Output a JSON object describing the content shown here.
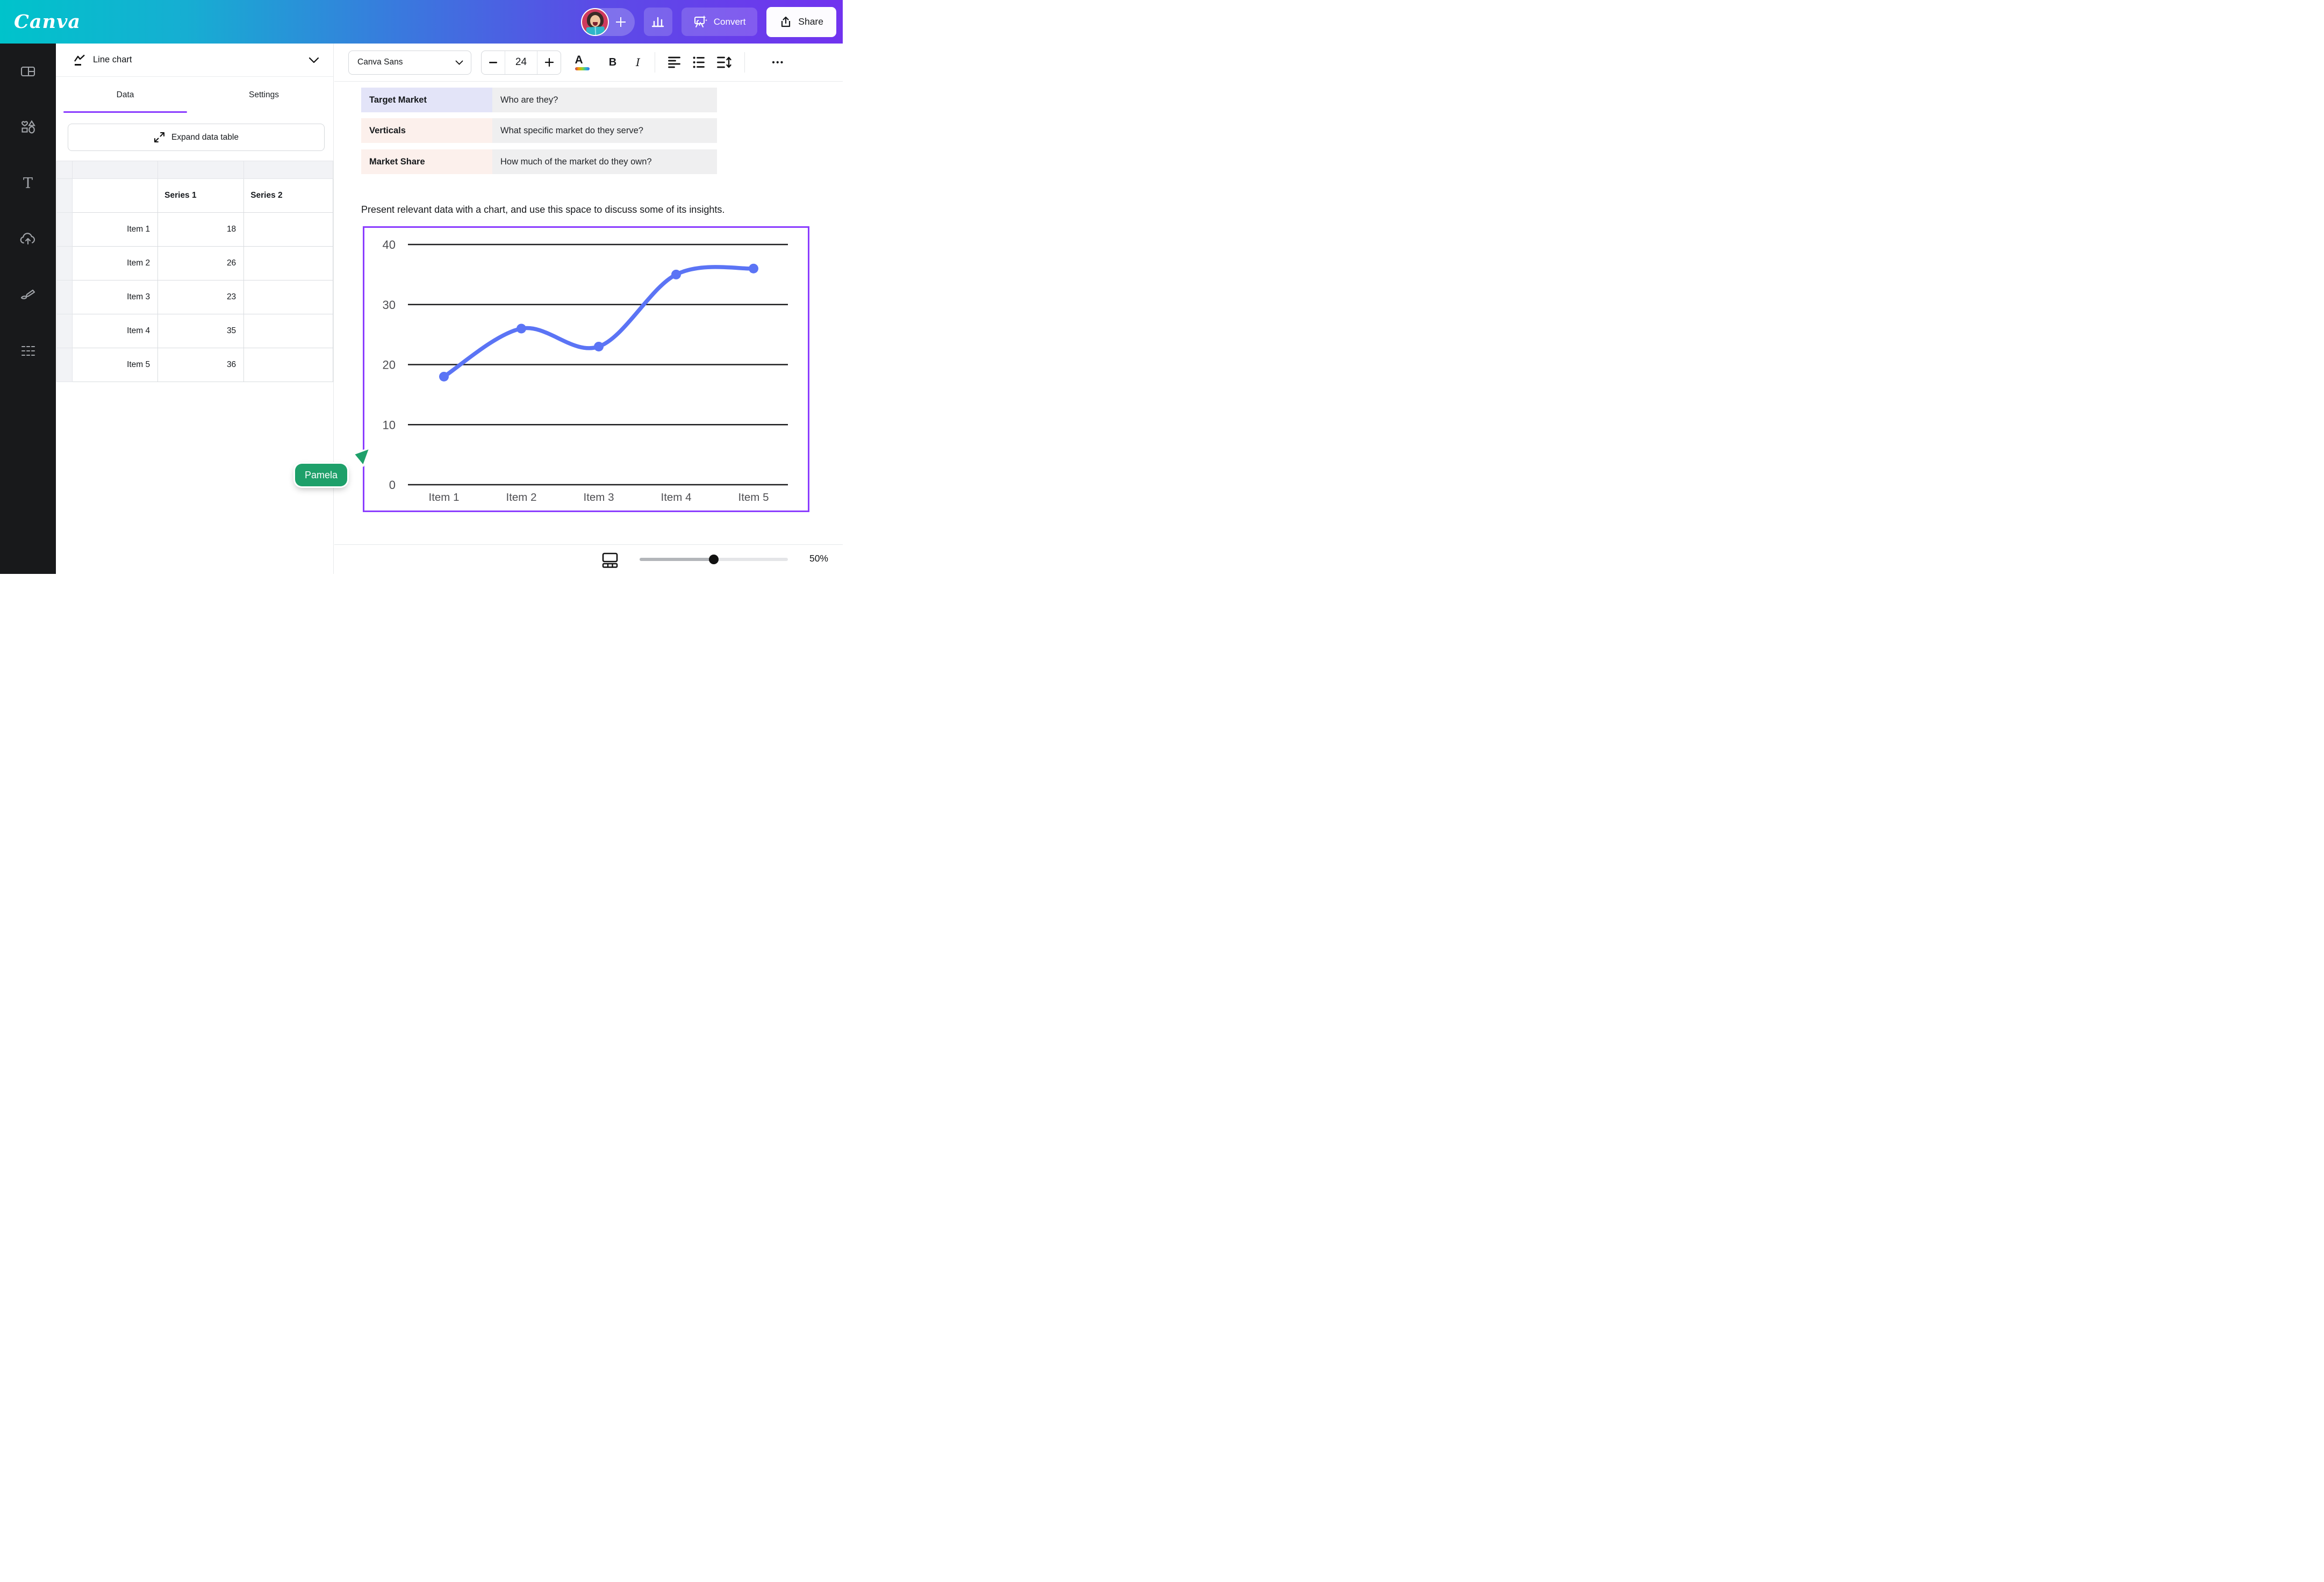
{
  "header": {
    "logo": "Canva",
    "convert_label": "Convert",
    "share_label": "Share"
  },
  "sidebar": {
    "items": [
      {
        "icon": "design-icon"
      },
      {
        "icon": "elements-icon"
      },
      {
        "icon": "text-icon",
        "glyph": "T"
      },
      {
        "icon": "uploads-icon"
      },
      {
        "icon": "draw-icon"
      },
      {
        "icon": "apps-icon"
      }
    ]
  },
  "panel": {
    "title": "Line chart",
    "accent": "#8b3dff",
    "tabs": [
      {
        "label": "Data",
        "active": true
      },
      {
        "label": "Settings",
        "active": false
      }
    ],
    "expand_button": "Expand data table",
    "table": {
      "corner": "",
      "headers": [
        "Series 1",
        "Series 2"
      ],
      "rows": [
        {
          "label": "Item 1",
          "s1": "18",
          "s2": ""
        },
        {
          "label": "Item 2",
          "s1": "26",
          "s2": ""
        },
        {
          "label": "Item 3",
          "s1": "23",
          "s2": ""
        },
        {
          "label": "Item 4",
          "s1": "35",
          "s2": ""
        },
        {
          "label": "Item 5",
          "s1": "36",
          "s2": ""
        }
      ]
    }
  },
  "toolbar": {
    "font": "Canva Sans",
    "size": "24",
    "color_letter": "A",
    "bold": "B",
    "italic": "I",
    "more": "•••"
  },
  "document": {
    "qa_rows": [
      {
        "label": "Target Market",
        "question": "Who are they?",
        "label_bg": "#e3e4f8"
      },
      {
        "label": "Verticals",
        "question": "What specific market do they serve?",
        "label_bg": "#fcf0ec"
      },
      {
        "label": "Market Share",
        "question": "How much of the market do they own?",
        "label_bg": "#fcf0ec"
      }
    ],
    "paragraph": "Present relevant data with a chart, and use this space to discuss some of its insights."
  },
  "chart_data": {
    "type": "line",
    "title": "",
    "categories": [
      "Item 1",
      "Item 2",
      "Item 3",
      "Item 4",
      "Item 5"
    ],
    "series": [
      {
        "name": "Series 1",
        "values": [
          18,
          26,
          23,
          35,
          36
        ]
      },
      {
        "name": "Series 2",
        "values": []
      }
    ],
    "ylim": [
      0,
      40
    ],
    "yticks": [
      40,
      30,
      20,
      10,
      0
    ],
    "grid": "horizontal",
    "legend": "none",
    "line_color": "#5b74f5",
    "grid_color": "#1e1e20",
    "tick_color": "#4e4e52",
    "selected": true,
    "selection_color": "#8b3dff"
  },
  "collaborator": {
    "name": "Pamela",
    "color": "#1ea06a"
  },
  "bottombar": {
    "zoom": "50%"
  }
}
